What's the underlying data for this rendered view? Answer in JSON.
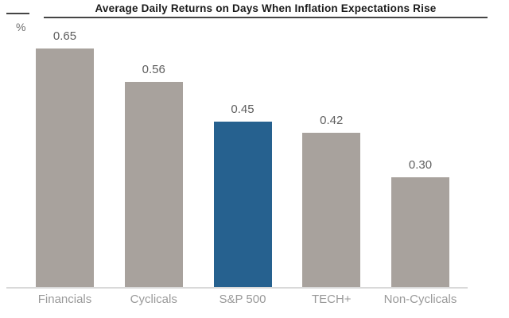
{
  "window": {
    "background": "#ffffff"
  },
  "chart_data": {
    "type": "bar",
    "title": "Average Daily Returns on Days When Inflation Expectations Rise",
    "ylabel": "%",
    "xlabel": "",
    "categories": [
      "Financials",
      "Cyclicals",
      "S&P 500",
      "TECH+",
      "Non-Cyclicals"
    ],
    "values": [
      0.65,
      0.56,
      0.45,
      0.42,
      0.3
    ],
    "value_labels": [
      "0.65",
      "0.56",
      "0.45",
      "0.42",
      "0.30"
    ],
    "ylim": [
      0,
      0.7
    ],
    "grid": false,
    "legend": "none",
    "axis_ticks": "none",
    "highlight_index": 2,
    "colors": {
      "bar": "#a8a29d",
      "highlight": "#26618f",
      "title": "#1a1a1a",
      "title_rule": "#454545",
      "value_label": "#5f5f5f",
      "category_label": "#9a9a9a",
      "baseline": "#d9d9d9"
    }
  }
}
